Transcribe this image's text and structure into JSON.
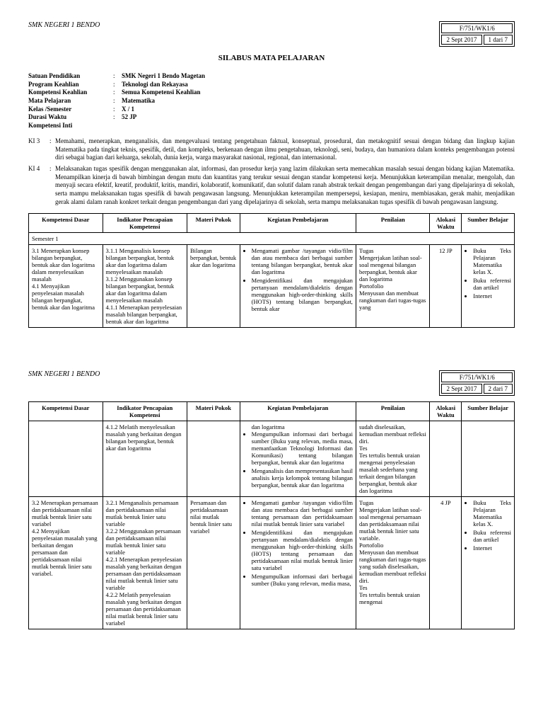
{
  "school": "SMK NEGERI 1 BENDO",
  "docCode": "F/751/WK1/6",
  "date": "2 Sept 2017",
  "page1": "1 dari 7",
  "page2": "2 dari 7",
  "title": "SILABUS MATA PELAJARAN",
  "info": {
    "satuan": {
      "label": "Satuan Pendidikan",
      "val": "SMK Negeri 1 Bendo Magetan"
    },
    "program": {
      "label": "Program Keahlian",
      "val": "Teknologi dan Rekayasa"
    },
    "kompetensi": {
      "label": "Kompetensi Keahlian",
      "val": "Semua Kompetensi Keahlian"
    },
    "mapel": {
      "label": "Mata Pelajaran",
      "val": "Matematika"
    },
    "kelas": {
      "label": "Kelas /Semester",
      "val": "X / 1"
    },
    "durasi": {
      "label": "Durasi Waktu",
      "val": "52 JP"
    },
    "ki": {
      "label": "Kompetensi Inti",
      "val": ""
    }
  },
  "ki3": "Memahami, menerapkan, menganalisis, dan mengevaluasi tentang pengetahuan faktual, konseptual, prosedural, dan metakognitif sesuai dengan bidang dan lingkup kajian Matematika pada tingkat teknis, spesifik, detil, dan kompleks, berkenaan dengan ilmu pengetahuan, teknologi, seni, budaya, dan humaniora dalam konteks pengembangan potensi diri sebagai bagian dari keluarga, sekolah, dunia kerja, warga masyarakat nasional, regional, dan internasional.",
  "ki4": "Melaksanakan tugas spesifik dengan menggunakan alat, informasi, dan prosedur kerja yang lazim dilakukan serta memecahkan masalah sesuai dengan bidang kajian Matematika. Menampilkan kinerja di bawah bimbingan dengan mutu dan kuantitas yang terukur sesuai dengan standar kompetensi kerja. Menunjukkan keterampilan menalar, mengolah, dan menyaji secara efektif, kreatif, produktif, kritis, mandiri, kolaboratif, komunikatif, dan solutif dalam ranah abstrak terkait dengan pengembangan dari yang dipelajarinya di sekolah, serta mampu melaksanakan tugas spesifik di bawah pengawasan langsung. Menunjukkan keterampilan mempersepsi, kesiapan, meniru, membiasakan, gerak mahir, menjadikan gerak alami dalam ranah konkret terkait dengan pengembangan dari yang dipelajarinya di sekolah, serta mampu melaksanakan tugas spesifik di bawah pengawasan langsung.",
  "headers": {
    "kd": "Kompetensi Dasar",
    "ipk": "Indikator Pencapaian Kompetensi",
    "mp": "Materi Pokok",
    "keg": "Kegiatan Pembelajaran",
    "pen": "Penilaian",
    "aw": "Alokasi Waktu",
    "sb": "Sumber Belajar"
  },
  "semester": "Semester 1",
  "row1": {
    "kd": "3.1 Menerapkan konsep bilangan berpangkat, bentuk akar dan logaritma dalam menyelesaikan masalah\n4.1 Menyajikan penyelesaian masalah bilangan berpangkat, bentuk akar dan logaritma",
    "ipk": "3.1.1 Menganalisis konsep bilangan berpangkat, bentuk akar dan logaritma dalam menyelesaikan masalah\n3.1.2 Menggunakan konsep bilangan berpangkat, bentuk akar dan logaritma dalam menyelesaikan masalah\n4.1.1 Menerapkan penyelesaian masalah bilangan berpangkat, bentuk akar dan logaritma",
    "mp": "Bilangan berpangkat, bentuk akar dan logaritma",
    "keg1": "Mengamati gambar /tayangan vidio/film dan atau membaca dari berbagai sumber tentang bilangan berpangkat, bentuk akar dan logaritma",
    "keg2": "Mengidentifikasi dan mengajukan pertanyaan mendalam/dialektis dengan menggunakan high-order-thinking skills (HOTS) tentang bilangan berpangkat, bentuk akar",
    "pen": "Tugas\nMengerjakan latihan soal-soal mengenai bilangan berpangkat, bentuk akar dan logaritma\nPortofolio\nMenyusun dan membuat rangkuman dari tugas-tugas yang",
    "aw": "12 JP",
    "sb1": "Buku Teks Pelajaran Matematika kelas X.",
    "sb2": "Buku referensi dan artikel",
    "sb3": "Internet"
  },
  "row2": {
    "ipk": "4.1.2 Melatih menyelesaikan masalah yang berkaitan dengan bilangan berpangkat, bentuk akar dan logaritma",
    "keg0": "dan logaritma",
    "keg1": "Mengumpulkan informasi dari berbagai sumber (Buku yang relevan, media masa, memanfaatkan Teknologi Informasi dan Komunikasi) tentang bilangan berpangkat, bentuk akar dan logaritma",
    "keg2": "Menganalisis dan mempresentasikan hasil analisis kerja kelompok tentang bilangan berpangkat, bentuk akar dan logaritma",
    "pen": "sudah diselesaikan, kemudian membuat refleksi diri.\nTes\nTes tertulis bentuk uraian mengenai penyelesaian masalah sederhana yang terkait dengan bilangan berpangkat, bentuk akar dan logaritma"
  },
  "row3": {
    "kd": "3.2 Menerapkan persamaan dan pertidaksamaan nilai mutlak bentuk linier satu variabel\n4.2 Menyajikan penyelesaian masalah yang berkaitan dengan persamaan dan pertidaksamaan nilai mutlak bentuk linier satu variabel.",
    "ipk": "3.2.1 Menganalisis persamaan dan pertidaksamaan nilai mutlak bentuk linier satu variable\n3.2.2 Menggunakan persamaan dan pertidaksamaan nilai mutlak bentuk linier satu variable\n4.2.1 Menerapkan penyelesaian masalah yang berkaitan dengan persamaan dan pertidaksamaan nilai mutlak bentuk linier satu variable\n4.2.2 Melatih penyelesaian masalah yang berkaitan dengan persamaan dan pertidaksamaan nilai mutlak bentuk linier satu variabel",
    "mp": "Persamaan dan pertidaksamaan nilai mutlak bentuk linier satu variabel",
    "keg1": "Mengamati gambar /tayangan vidio/film dan atau membaca dari berbagai sumber tentang persamaan dan pertidaksamaan nilai mutlak bentuk linier satu variabel",
    "keg2": "Mengidentifikasi dan mengajukan pertanyaan mendalam/dialektis dengan menggunakan high-order-thinking skills (HOTS) tentang persamaan dan pertidaksamaan nilai mutlak bentuk linier satu variabel",
    "keg3": "Mengumpulkan informasi dari berbagai sumber (Buku yang relevan, media masa,",
    "pen": "Tugas\nMengerjakan latihan soal-soal mengenai persamaan dan pertidaksamaan nilai mutlak bentuk linier satu variable.\nPortofolio\nMenyusun dan membuat rangkuman dari tugas-tugas yang sudah diselesaikan, kemudian membuat refleksi diri.\nTes\nTes tertulis bentuk uraian mengenai",
    "aw": "4 JP",
    "sb1": "Buku Teks Pelajaran Matematika kelas X.",
    "sb2": "Buku referensi dan artikel",
    "sb3": "Internet"
  }
}
